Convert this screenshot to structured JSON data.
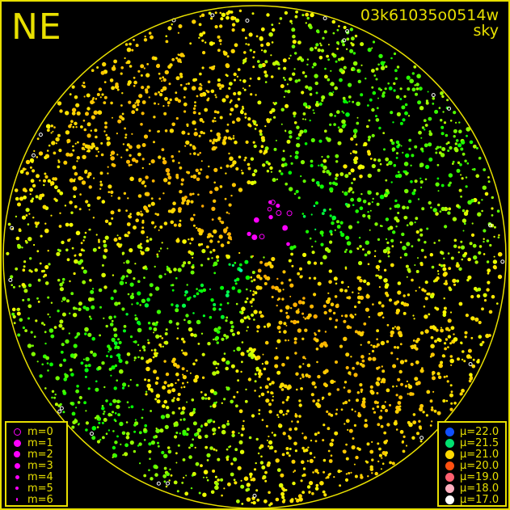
{
  "corner_label": "NE",
  "frame_id": "03k61035o0514w",
  "frame_type": "sky",
  "colors": {
    "frame": "#e8e000",
    "background": "#000000",
    "magnitude_symbol": "#ff00ff"
  },
  "magnitude_legend": [
    {
      "label": "m=0",
      "style": "ring"
    },
    {
      "label": "m=1"
    },
    {
      "label": "m=2"
    },
    {
      "label": "m=3"
    },
    {
      "label": "m=4"
    },
    {
      "label": "m=5"
    },
    {
      "label": "m=6"
    }
  ],
  "surface_brightness_legend": [
    {
      "label": "μ=22.0",
      "color": "#1050ff"
    },
    {
      "label": "μ=21.5",
      "color": "#00e070"
    },
    {
      "label": "μ=21.0",
      "color": "#ffd800"
    },
    {
      "label": "μ=20.0",
      "color": "#ff5010"
    },
    {
      "label": "μ=19.0",
      "color": "#ff6070"
    },
    {
      "label": "μ=18.0",
      "color": "#ffb0c0"
    },
    {
      "label": "μ=17.0",
      "color": "#ffffff"
    }
  ]
}
